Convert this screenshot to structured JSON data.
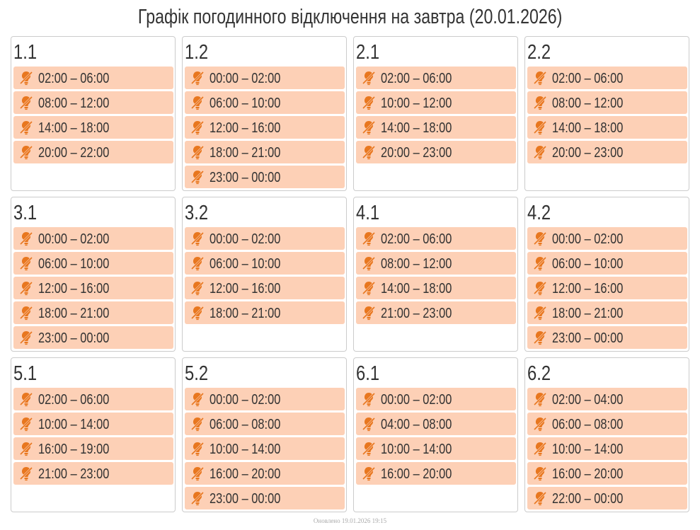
{
  "header": {
    "title": "Графік погодинного відключення на завтра (20.01.2026)"
  },
  "groups": [
    {
      "name": "1.1",
      "slots": [
        "02:00 – 06:00",
        "08:00 – 12:00",
        "14:00 – 18:00",
        "20:00 – 22:00"
      ]
    },
    {
      "name": "1.2",
      "slots": [
        "00:00 – 02:00",
        "06:00 – 10:00",
        "12:00 – 16:00",
        "18:00 – 21:00",
        "23:00 – 00:00"
      ]
    },
    {
      "name": "2.1",
      "slots": [
        "02:00 – 06:00",
        "10:00 – 12:00",
        "14:00 – 18:00",
        "20:00 – 23:00"
      ]
    },
    {
      "name": "2.2",
      "slots": [
        "02:00 – 06:00",
        "08:00 – 12:00",
        "14:00 – 18:00",
        "20:00 – 23:00"
      ]
    },
    {
      "name": "3.1",
      "slots": [
        "00:00 – 02:00",
        "06:00 – 10:00",
        "12:00 – 16:00",
        "18:00 – 21:00",
        "23:00 – 00:00"
      ]
    },
    {
      "name": "3.2",
      "slots": [
        "00:00 – 02:00",
        "06:00 – 10:00",
        "12:00 – 16:00",
        "18:00 – 21:00"
      ]
    },
    {
      "name": "4.1",
      "slots": [
        "02:00 – 06:00",
        "08:00 – 12:00",
        "14:00 – 18:00",
        "21:00 – 23:00"
      ]
    },
    {
      "name": "4.2",
      "slots": [
        "00:00 – 02:00",
        "06:00 – 10:00",
        "12:00 – 16:00",
        "18:00 – 21:00",
        "23:00 – 00:00"
      ]
    },
    {
      "name": "5.1",
      "slots": [
        "02:00 – 06:00",
        "10:00 – 14:00",
        "16:00 – 19:00",
        "21:00 – 23:00"
      ]
    },
    {
      "name": "5.2",
      "slots": [
        "00:00 – 02:00",
        "06:00 – 08:00",
        "10:00 – 14:00",
        "16:00 – 20:00",
        "23:00 – 00:00"
      ]
    },
    {
      "name": "6.1",
      "slots": [
        "00:00 – 02:00",
        "04:00 – 08:00",
        "10:00 – 14:00",
        "16:00 – 20:00"
      ]
    },
    {
      "name": "6.2",
      "slots": [
        "02:00 – 04:00",
        "06:00 – 08:00",
        "10:00 – 14:00",
        "16:00 – 20:00",
        "22:00 – 00:00"
      ]
    }
  ],
  "footer": {
    "updated": "Оновлено 19.01.2026 19:15"
  }
}
